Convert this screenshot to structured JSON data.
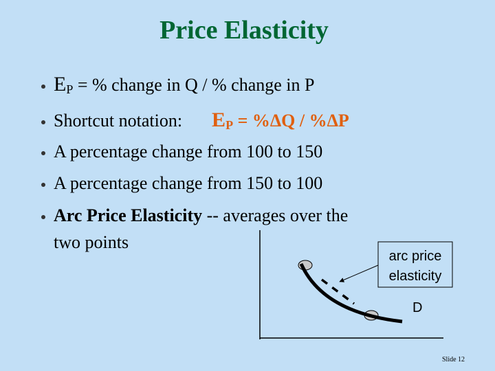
{
  "title": "Price Elasticity",
  "bullets": [
    {
      "parts": [
        "E",
        "P",
        "= % change in Q / % change in P"
      ]
    },
    {
      "parts": [
        "Shortcut notation:",
        "E",
        "P",
        "= %ΔQ / %ΔP"
      ]
    },
    {
      "parts": [
        "A percentage change from 100 to 150"
      ]
    },
    {
      "parts": [
        "A percentage change from 150 to 100"
      ]
    },
    {
      "parts": [
        "Arc Price Elasticity",
        "-- averages over the",
        "two points"
      ]
    }
  ],
  "diagram": {
    "label": [
      "arc price",
      "elasticity"
    ],
    "curve_label": "D"
  },
  "footer": "Slide 12"
}
